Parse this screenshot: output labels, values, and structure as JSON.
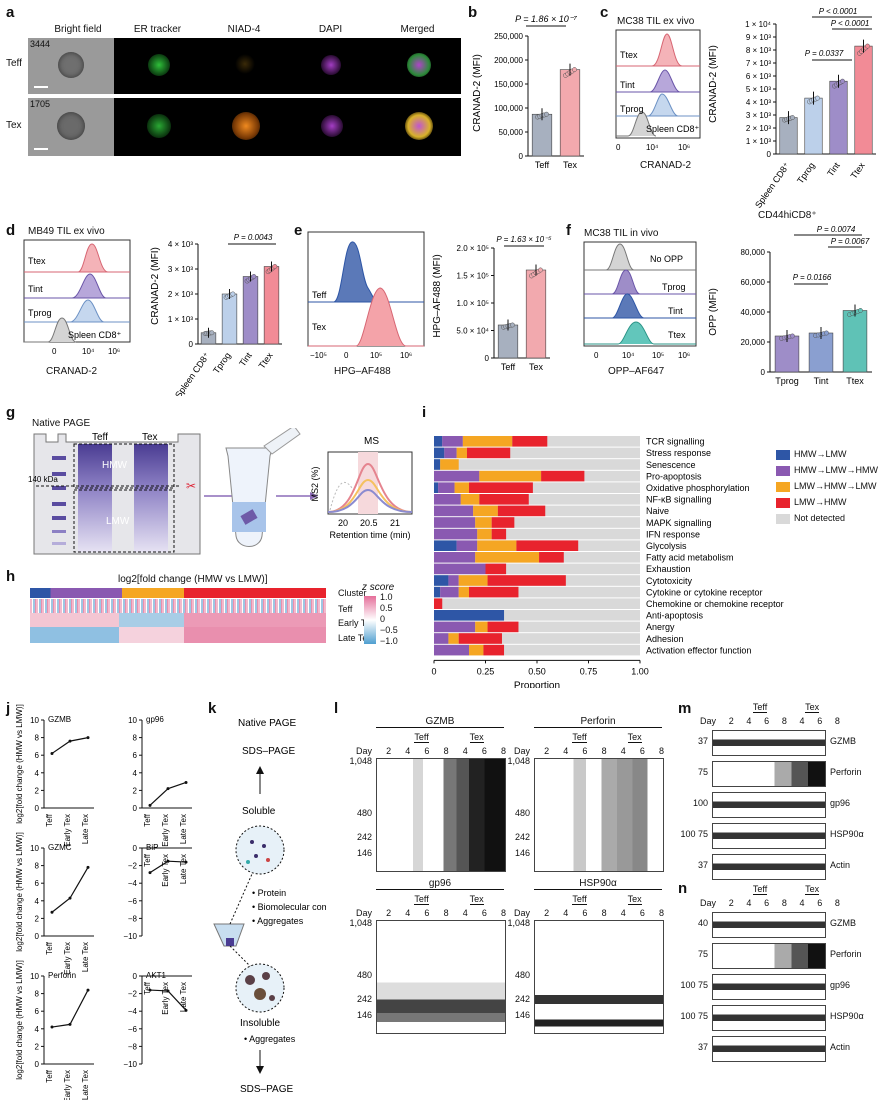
{
  "panel_letters": [
    "a",
    "b",
    "c",
    "d",
    "e",
    "f",
    "g",
    "h",
    "i",
    "j",
    "k",
    "l",
    "m",
    "n"
  ],
  "panel_a": {
    "columns": [
      "Bright field",
      "ER tracker",
      "NIAD-4",
      "DAPI",
      "Merged"
    ],
    "rows": [
      {
        "label": "Teff",
        "id": "3444"
      },
      {
        "label": "Tex",
        "id": "1705"
      }
    ]
  },
  "panel_b": {
    "pvalue": "P = 1.86 × 10⁻⁷",
    "ylabel": "CRANAD-2 (MFI)",
    "yticks": [
      "0",
      "50,000",
      "100,000",
      "150,000",
      "200,000",
      "250,000"
    ],
    "categories": [
      "Teff",
      "Tex"
    ],
    "values": [
      87000,
      180000
    ]
  },
  "panel_c": {
    "title": "MC38 TIL ex vivo",
    "hist_labels": [
      "Ttex",
      "Tint",
      "Tprog",
      "Spleen CD8⁺"
    ],
    "xlabel": "CRANAD-2",
    "ylabel": "CRANAD-2 (MFI)",
    "yticks": [
      "0",
      "1 × 10³",
      "2 × 10³",
      "3 × 10³",
      "4 × 10³",
      "5 × 10³",
      "6 × 10³",
      "7 × 10³",
      "8 × 10³",
      "9 × 10³",
      "1 × 10⁴"
    ],
    "pvals": [
      "P < 0.0001",
      "P < 0.0001",
      "P = 0.0337"
    ],
    "categories": [
      "Spleen CD8⁺",
      "Tprog",
      "Tint",
      "Ttex"
    ],
    "values": [
      2800,
      4300,
      5600,
      8300
    ]
  },
  "panel_d": {
    "title": "MB49 TIL ex vivo",
    "hist_labels": [
      "Ttex",
      "Tint",
      "Tprog",
      "Spleen CD8⁺"
    ],
    "xlabel": "CRANAD-2",
    "ylabel": "CRANAD-2 (MFI)",
    "yticks": [
      "0",
      "1 × 10³",
      "2 × 10³",
      "3 × 10³",
      "4 × 10³"
    ],
    "pval": "P = 0.0043",
    "categories": [
      "Spleen CD8⁺",
      "Tprog",
      "Tint",
      "Ttex"
    ],
    "values": [
      450,
      2000,
      2700,
      3100
    ]
  },
  "panel_e": {
    "hist_labels": [
      "Teff",
      "Tex"
    ],
    "xlabel": "HPG–AF488",
    "ylabel": "HPG–AF488 (MFI)",
    "pval": "P = 1.63 × 10⁻⁵",
    "yticks": [
      "0",
      "5.0 × 10⁴",
      "1.0 × 10⁵",
      "1.5 × 10⁵",
      "2.0 × 10⁵"
    ],
    "categories": [
      "Teff",
      "Tex"
    ],
    "values": [
      60000,
      160000
    ]
  },
  "panel_f": {
    "title": "MC38 TIL in vivo",
    "subtitle": "CD44hiCD8⁺",
    "hist_labels": [
      "No OPP",
      "Tprog",
      "Tint",
      "Ttex"
    ],
    "xlabel": "OPP–AF647",
    "ylabel": "OPP (MFI)",
    "yticks": [
      "0",
      "20,000",
      "40,000",
      "60,000",
      "80,000"
    ],
    "pvals": [
      "P = 0.0074",
      "P = 0.0067",
      "P = 0.0166"
    ],
    "categories": [
      "Tprog",
      "Tint",
      "Ttex"
    ],
    "values": [
      24000,
      26000,
      41000
    ]
  },
  "panel_g": {
    "label": "Native PAGE",
    "lanes": [
      "Teff",
      "Tex"
    ],
    "bands": [
      "HMW",
      "LMW"
    ],
    "marker": "140 kDa",
    "ms_title": "MS",
    "ms_ylabel": "MS2 (%)",
    "ms_xlabel": "Retention time (min)",
    "ms_xticks": [
      "20",
      "20.5",
      "21"
    ]
  },
  "panel_h": {
    "title": "log2[fold change (HMW vs LMW)]",
    "rows": [
      "Cluster",
      "Teff",
      "Early Tex",
      "Late Tex"
    ],
    "legend_title": "z score",
    "legend_ticks": [
      "1.0",
      "0.5",
      "0",
      "−0.5",
      "−1.0"
    ]
  },
  "panel_i": {
    "categories": [
      "TCR signalling",
      "Stress response",
      "Senescence",
      "Pro-apoptosis",
      "Oxidative phosphorylation",
      "NF-κB signalling",
      "Naive",
      "MAPK signalling",
      "IFN response",
      "Glycolysis",
      "Fatty acid metabolism",
      "Exhaustion",
      "Cytotoxicity",
      "Cytokine or cytokine receptor",
      "Chemokine or chemokine receptor",
      "Anti-apoptosis",
      "Anergy",
      "Adhesion",
      "Activation effector function"
    ],
    "legend": [
      "HMW→LMW",
      "HMW→LMW→HMW",
      "LMW→HMW→LMW",
      "LMW→HMW",
      "Not detected"
    ],
    "xticks": [
      "0",
      "0.25",
      "0.50",
      "0.75",
      "1.00"
    ],
    "xlabel": "Proportion"
  },
  "panel_j": {
    "ylabel": "log2[fold change (HMW vs LMW)]",
    "xticks": [
      "Teff",
      "Early Tex",
      "Late Tex"
    ],
    "plots": [
      {
        "name": "GZMB",
        "yticks": [
          "0",
          "2",
          "4",
          "6",
          "8",
          "10"
        ],
        "values": [
          6.2,
          7.6,
          8.0
        ]
      },
      {
        "name": "gp96",
        "yticks": [
          "0",
          "2",
          "4",
          "6",
          "8",
          "10"
        ],
        "values": [
          0.3,
          2.2,
          2.9
        ]
      },
      {
        "name": "GZMC",
        "yticks": [
          "0",
          "2",
          "4",
          "6",
          "8",
          "10"
        ],
        "values": [
          2.7,
          4.3,
          7.8
        ]
      },
      {
        "name": "BiP",
        "yticks": [
          "0",
          "−2",
          "−4",
          "−6",
          "−8",
          "−10"
        ],
        "values": [
          -2.8,
          -1.5,
          -1.6
        ]
      },
      {
        "name": "Perforin",
        "yticks": [
          "0",
          "2",
          "4",
          "6",
          "8",
          "10"
        ],
        "values": [
          4.2,
          4.5,
          8.4
        ]
      },
      {
        "name": "AKT1",
        "yticks": [
          "0",
          "−2",
          "−4",
          "−6",
          "−8",
          "−10"
        ],
        "values": [
          -1.6,
          -1.7,
          -3.9
        ]
      }
    ]
  },
  "panel_k": {
    "top1": "Native PAGE",
    "top2": "SDS–PAGE",
    "soluble": "Soluble",
    "soluble_items": [
      "• Protein",
      "• Biomolecular complexes",
      "• Aggregates"
    ],
    "insoluble": "Insoluble",
    "insoluble_items": [
      "• Aggregates"
    ],
    "bottom": "SDS–PAGE"
  },
  "panel_l": {
    "blots": [
      {
        "name": "GZMB"
      },
      {
        "name": "Perforin"
      },
      {
        "name": "gp96"
      },
      {
        "name": "HSP90α"
      }
    ],
    "days": [
      "Day",
      "2",
      "4",
      "6",
      "8",
      "4",
      "6",
      "8"
    ],
    "groups": [
      "Teff",
      "Tex"
    ],
    "mw": [
      "1,048",
      "480",
      "242",
      "146"
    ]
  },
  "panel_m": {
    "groups": [
      "Teff",
      "Tex"
    ],
    "days": [
      "Day",
      "2",
      "4",
      "6",
      "8",
      "4",
      "6",
      "8"
    ],
    "rows": [
      {
        "mw": "37",
        "name": "GZMB"
      },
      {
        "mw": "75",
        "name": "Perforin"
      },
      {
        "mw": "100",
        "name": "gp96"
      },
      {
        "mw": "100 75",
        "name": "HSP90α"
      },
      {
        "mw": "37",
        "name": "Actin"
      }
    ]
  },
  "panel_n": {
    "groups": [
      "Teff",
      "Tex"
    ],
    "days": [
      "Day",
      "2",
      "4",
      "6",
      "8",
      "4",
      "6",
      "8"
    ],
    "rows": [
      {
        "mw": "40",
        "name": "GZMB"
      },
      {
        "mw": "75",
        "name": "Perforin"
      },
      {
        "mw": "100 75",
        "name": "gp96"
      },
      {
        "mw": "100 75",
        "name": "HSP90α"
      },
      {
        "mw": "37",
        "name": "Actin"
      }
    ]
  },
  "colors": {
    "teff_gray": "#a7b0bf",
    "tex_pink": "#f2a9ae",
    "tprog": "#bcd0ea",
    "tint": "#9e8dc8",
    "ttex": "#f28b96",
    "hmw_lmw": "#2e56a6",
    "hmw_lmw_hmw": "#8a59b1",
    "lmw_hmw_lmw": "#f5a623",
    "lmw_hmw": "#e8232d",
    "not_detected": "#d9d9d9"
  }
}
